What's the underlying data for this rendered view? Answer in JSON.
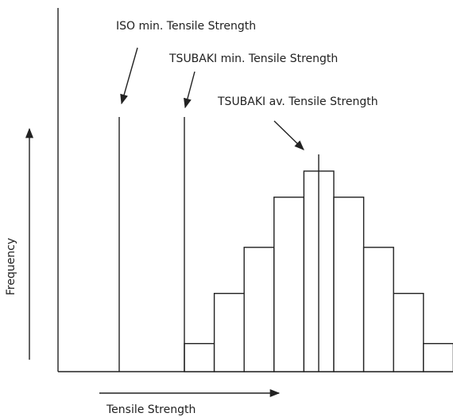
{
  "labels": {
    "iso_min": "ISO min. Tensile Strength",
    "tsubaki_min": "TSUBAKI min. Tensile Strength",
    "tsubaki_avg": "TSUBAKI av. Tensile Strength",
    "y_axis": "Frequency",
    "x_axis": "Tensile Strength"
  },
  "histogram": {
    "relative_frequencies": [
      0.14,
      0.39,
      0.62,
      0.87,
      1.0,
      0.87,
      0.62,
      0.39,
      0.14
    ]
  },
  "colors": {
    "line": "#222222",
    "background": "#ffffff"
  }
}
